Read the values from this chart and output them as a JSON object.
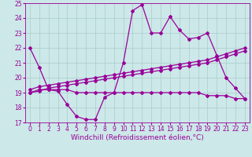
{
  "xlabel": "Windchill (Refroidissement éolien,°C)",
  "xlim": [
    -0.5,
    23.5
  ],
  "ylim": [
    17,
    25
  ],
  "xticks": [
    0,
    1,
    2,
    3,
    4,
    5,
    6,
    7,
    8,
    9,
    10,
    11,
    12,
    13,
    14,
    15,
    16,
    17,
    18,
    19,
    20,
    21,
    22,
    23
  ],
  "yticks": [
    17,
    18,
    19,
    20,
    21,
    22,
    23,
    24,
    25
  ],
  "bg_color": "#cce8e8",
  "line_color": "#990099",
  "grid_color": "#aacccc",
  "line1_y": [
    22,
    20.7,
    19.2,
    19.1,
    18.2,
    17.4,
    17.2,
    17.2,
    18.7,
    19.0,
    21.0,
    24.5,
    24.9,
    23.0,
    23.0,
    24.1,
    23.2,
    22.6,
    22.7,
    23.0,
    21.5,
    20.0,
    19.3,
    18.6
  ],
  "line2_y": [
    19.0,
    19.2,
    19.2,
    19.2,
    19.2,
    19.0,
    19.0,
    19.0,
    19.0,
    19.0,
    19.0,
    19.0,
    19.0,
    19.0,
    19.0,
    19.0,
    19.0,
    19.0,
    19.0,
    18.8,
    18.8,
    18.8,
    18.6,
    18.6
  ],
  "line3_y": [
    19.2,
    19.4,
    19.5,
    19.6,
    19.7,
    19.8,
    19.9,
    20.0,
    20.1,
    20.2,
    20.3,
    20.4,
    20.5,
    20.6,
    20.7,
    20.8,
    20.9,
    21.0,
    21.1,
    21.2,
    21.4,
    21.6,
    21.8,
    22.0
  ],
  "line4_y": [
    19.0,
    19.1,
    19.3,
    19.4,
    19.5,
    19.6,
    19.7,
    19.8,
    19.9,
    20.0,
    20.1,
    20.2,
    20.3,
    20.4,
    20.5,
    20.6,
    20.7,
    20.8,
    20.9,
    21.0,
    21.2,
    21.4,
    21.6,
    21.8
  ],
  "marker": "D",
  "markersize": 2.0,
  "linewidth": 0.9,
  "tick_fontsize": 5.5,
  "xlabel_fontsize": 6.5
}
